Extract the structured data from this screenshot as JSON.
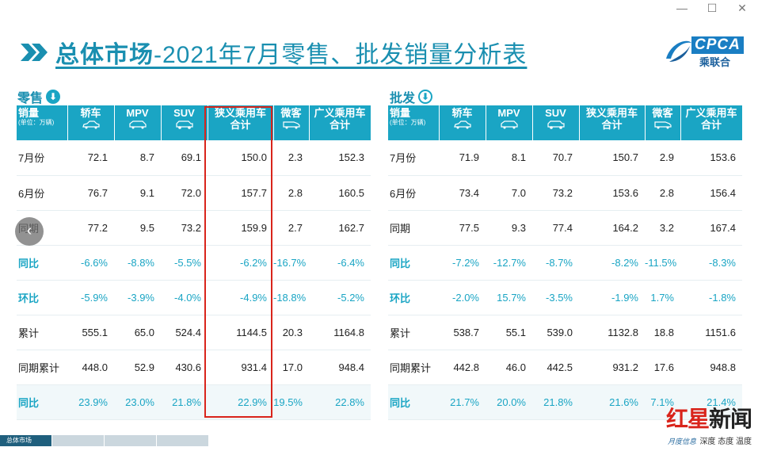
{
  "window": {
    "minimize": "—",
    "maximize": "☐",
    "close": "✕"
  },
  "title": {
    "bold": "总体市场",
    "rest": "-2021年7月零售、批发销量分析表"
  },
  "logo": {
    "text": "CPCA",
    "cn": "乘联合",
    "icon": "cpca-swirl-icon"
  },
  "retail": {
    "label": "零售",
    "icon": "arrow-down-circle-icon",
    "header_first": "销量",
    "header_unit": "(单位：万辆)",
    "columns": [
      "轿车",
      "MPV",
      "SUV",
      "狭义乘用车合计",
      "微客",
      "广义乘用车合计"
    ],
    "rows": [
      {
        "label": "7月份",
        "values": [
          "72.1",
          "8.7",
          "69.1",
          "150.0",
          "2.3",
          "152.3"
        ]
      },
      {
        "label": "6月份",
        "values": [
          "76.7",
          "9.1",
          "72.0",
          "157.7",
          "2.8",
          "160.5"
        ]
      },
      {
        "label": "同期",
        "values": [
          "77.2",
          "9.5",
          "73.2",
          "159.9",
          "2.7",
          "162.7"
        ]
      },
      {
        "label": "同比",
        "values": [
          "-6.6%",
          "-8.8%",
          "-5.5%",
          "-6.2%",
          "-16.7%",
          "-6.4%"
        ]
      },
      {
        "label": "环比",
        "values": [
          "-5.9%",
          "-3.9%",
          "-4.0%",
          "-4.9%",
          "-18.8%",
          "-5.2%"
        ]
      },
      {
        "label": "累计",
        "values": [
          "555.1",
          "65.0",
          "524.4",
          "1144.5",
          "20.3",
          "1164.8"
        ]
      },
      {
        "label": "同期累计",
        "values": [
          "448.0",
          "52.9",
          "430.6",
          "931.4",
          "17.0",
          "948.4"
        ]
      },
      {
        "label": "同比",
        "values": [
          "23.9%",
          "23.0%",
          "21.8%",
          "22.9%",
          "19.5%",
          "22.8%"
        ]
      }
    ]
  },
  "wholesale": {
    "label": "批发",
    "icon": "arrow-down-circle-outline-icon",
    "header_first": "销量",
    "header_unit": "(单位：万辆)",
    "columns": [
      "轿车",
      "MPV",
      "SUV",
      "狭义乘用车合计",
      "微客",
      "广义乘用车合计"
    ],
    "rows": [
      {
        "label": "7月份",
        "values": [
          "71.9",
          "8.1",
          "70.7",
          "150.7",
          "2.9",
          "153.6"
        ]
      },
      {
        "label": "6月份",
        "values": [
          "73.4",
          "7.0",
          "73.2",
          "153.6",
          "2.8",
          "156.4"
        ]
      },
      {
        "label": "同期",
        "values": [
          "77.5",
          "9.3",
          "77.4",
          "164.2",
          "3.2",
          "167.4"
        ]
      },
      {
        "label": "同比",
        "values": [
          "-7.2%",
          "-12.7%",
          "-8.7%",
          "-8.2%",
          "-11.5%",
          "-8.3%"
        ]
      },
      {
        "label": "环比",
        "values": [
          "-2.0%",
          "15.7%",
          "-3.5%",
          "-1.9%",
          "1.7%",
          "-1.8%"
        ]
      },
      {
        "label": "累计",
        "values": [
          "538.7",
          "55.1",
          "539.0",
          "1132.8",
          "18.8",
          "1151.6"
        ]
      },
      {
        "label": "同期累计",
        "values": [
          "442.8",
          "46.0",
          "442.5",
          "931.2",
          "17.6",
          "948.8"
        ]
      },
      {
        "label": "同比",
        "values": [
          "21.7%",
          "20.0%",
          "21.8%",
          "21.6%",
          "7.1%",
          "21.4%"
        ]
      }
    ]
  },
  "nav": {
    "prev": "‹"
  },
  "tabs": [
    "总体市场",
    "",
    "",
    ""
  ],
  "watermark": {
    "logo_red": "红星",
    "logo_black": "新闻",
    "slogan": "深度 态度 温度",
    "mini": "月度信息"
  },
  "colors": {
    "accent": "#1aa5c4",
    "title": "#1a8fb0",
    "highlight": "#d9241b"
  }
}
